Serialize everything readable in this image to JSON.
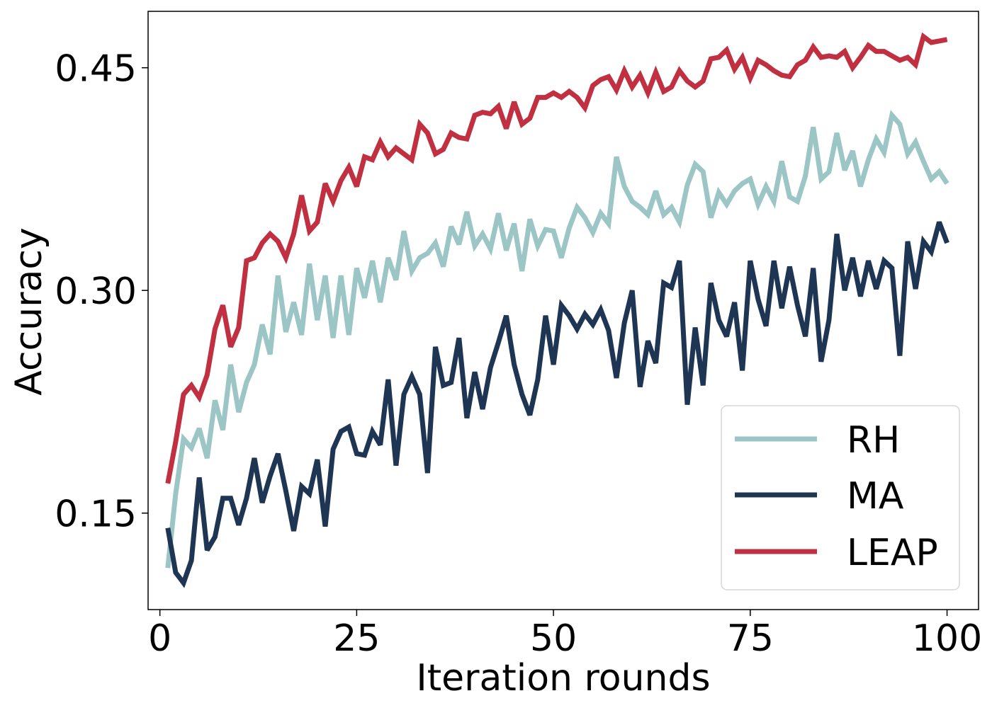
{
  "chart_data": {
    "type": "line",
    "title": "",
    "xlabel": "Iteration rounds",
    "ylabel": "Accuracy",
    "xlim": [
      -1.5,
      104
    ],
    "ylim": [
      0.085,
      0.488
    ],
    "xticks": [
      0,
      25,
      50,
      75,
      100
    ],
    "xtick_labels": [
      "0",
      "25",
      "50",
      "75",
      "100"
    ],
    "yticks": [
      0.15,
      0.3,
      0.45
    ],
    "ytick_labels": [
      "0.15",
      "0.30",
      "0.45"
    ],
    "grid": false,
    "legend_position": "bottom-right",
    "series": [
      {
        "name": "RH",
        "color": "#9cc5c6",
        "x": [
          1,
          2,
          3,
          4,
          5,
          6,
          7,
          8,
          9,
          10,
          11,
          12,
          13,
          14,
          15,
          16,
          17,
          18,
          19,
          20,
          21,
          22,
          23,
          24,
          25,
          26,
          27,
          28,
          29,
          30,
          31,
          32,
          33,
          34,
          35,
          36,
          37,
          38,
          39,
          40,
          41,
          42,
          43,
          44,
          45,
          46,
          47,
          48,
          49,
          50,
          51,
          52,
          53,
          54,
          55,
          56,
          57,
          58,
          59,
          60,
          61,
          62,
          63,
          64,
          65,
          66,
          67,
          68,
          69,
          70,
          71,
          72,
          73,
          74,
          75,
          76,
          77,
          78,
          79,
          80,
          81,
          82,
          83,
          84,
          85,
          86,
          87,
          88,
          89,
          90,
          91,
          92,
          93,
          94,
          95,
          96,
          97,
          98,
          99,
          100
        ],
        "values": [
          0.113,
          0.163,
          0.2,
          0.194,
          0.207,
          0.187,
          0.226,
          0.206,
          0.25,
          0.218,
          0.238,
          0.25,
          0.277,
          0.257,
          0.31,
          0.272,
          0.292,
          0.27,
          0.318,
          0.28,
          0.31,
          0.268,
          0.31,
          0.27,
          0.315,
          0.295,
          0.32,
          0.292,
          0.322,
          0.307,
          0.34,
          0.313,
          0.322,
          0.325,
          0.332,
          0.316,
          0.343,
          0.331,
          0.353,
          0.33,
          0.338,
          0.328,
          0.352,
          0.327,
          0.345,
          0.313,
          0.348,
          0.33,
          0.341,
          0.34,
          0.322,
          0.342,
          0.356,
          0.349,
          0.339,
          0.352,
          0.345,
          0.39,
          0.37,
          0.36,
          0.356,
          0.351,
          0.367,
          0.351,
          0.356,
          0.346,
          0.371,
          0.385,
          0.38,
          0.349,
          0.366,
          0.358,
          0.367,
          0.372,
          0.375,
          0.358,
          0.37,
          0.36,
          0.387,
          0.363,
          0.36,
          0.377,
          0.41,
          0.375,
          0.38,
          0.406,
          0.381,
          0.394,
          0.37,
          0.388,
          0.402,
          0.393,
          0.418,
          0.412,
          0.392,
          0.4,
          0.387,
          0.375,
          0.38,
          0.372
        ]
      },
      {
        "name": "MA",
        "color": "#1e3553",
        "x": [
          1,
          2,
          3,
          4,
          5,
          6,
          7,
          8,
          9,
          10,
          11,
          12,
          13,
          14,
          15,
          16,
          17,
          18,
          19,
          20,
          21,
          22,
          23,
          24,
          25,
          26,
          27,
          28,
          29,
          30,
          31,
          32,
          33,
          34,
          35,
          36,
          37,
          38,
          39,
          40,
          41,
          42,
          43,
          44,
          45,
          46,
          47,
          48,
          49,
          50,
          51,
          52,
          53,
          54,
          55,
          56,
          57,
          58,
          59,
          60,
          61,
          62,
          63,
          64,
          65,
          66,
          67,
          68,
          69,
          70,
          71,
          72,
          73,
          74,
          75,
          76,
          77,
          78,
          79,
          80,
          81,
          82,
          83,
          84,
          85,
          86,
          87,
          88,
          89,
          90,
          91,
          92,
          93,
          94,
          95,
          96,
          97,
          98,
          99,
          100
        ],
        "values": [
          0.14,
          0.11,
          0.103,
          0.118,
          0.174,
          0.125,
          0.134,
          0.16,
          0.16,
          0.142,
          0.16,
          0.187,
          0.157,
          0.175,
          0.19,
          0.165,
          0.138,
          0.168,
          0.163,
          0.186,
          0.141,
          0.193,
          0.205,
          0.208,
          0.19,
          0.189,
          0.205,
          0.196,
          0.24,
          0.182,
          0.23,
          0.242,
          0.23,
          0.177,
          0.262,
          0.236,
          0.238,
          0.268,
          0.214,
          0.245,
          0.22,
          0.248,
          0.265,
          0.283,
          0.25,
          0.23,
          0.216,
          0.24,
          0.283,
          0.25,
          0.29,
          0.283,
          0.274,
          0.284,
          0.277,
          0.287,
          0.273,
          0.241,
          0.278,
          0.3,
          0.235,
          0.266,
          0.251,
          0.305,
          0.302,
          0.32,
          0.223,
          0.275,
          0.236,
          0.305,
          0.28,
          0.269,
          0.292,
          0.246,
          0.32,
          0.294,
          0.276,
          0.32,
          0.288,
          0.316,
          0.29,
          0.269,
          0.315,
          0.252,
          0.28,
          0.338,
          0.3,
          0.322,
          0.296,
          0.32,
          0.301,
          0.32,
          0.315,
          0.256,
          0.333,
          0.301,
          0.333,
          0.326,
          0.346,
          0.332
        ]
      },
      {
        "name": "LEAP",
        "color": "#c03040",
        "x": [
          1,
          2,
          3,
          4,
          5,
          6,
          7,
          8,
          9,
          10,
          11,
          12,
          13,
          14,
          15,
          16,
          17,
          18,
          19,
          20,
          21,
          22,
          23,
          24,
          25,
          26,
          27,
          28,
          29,
          30,
          31,
          32,
          33,
          34,
          35,
          36,
          37,
          38,
          39,
          40,
          41,
          42,
          43,
          44,
          45,
          46,
          47,
          48,
          49,
          50,
          51,
          52,
          53,
          54,
          55,
          56,
          57,
          58,
          59,
          60,
          61,
          62,
          63,
          64,
          65,
          66,
          67,
          68,
          69,
          70,
          71,
          72,
          73,
          74,
          75,
          76,
          77,
          78,
          79,
          80,
          81,
          82,
          83,
          84,
          85,
          86,
          87,
          88,
          89,
          90,
          91,
          92,
          93,
          94,
          95,
          96,
          97,
          98,
          99,
          100
        ],
        "values": [
          0.17,
          0.198,
          0.23,
          0.236,
          0.228,
          0.243,
          0.274,
          0.29,
          0.262,
          0.275,
          0.32,
          0.322,
          0.332,
          0.338,
          0.333,
          0.322,
          0.338,
          0.364,
          0.34,
          0.346,
          0.372,
          0.36,
          0.374,
          0.383,
          0.37,
          0.39,
          0.388,
          0.4,
          0.39,
          0.396,
          0.392,
          0.388,
          0.412,
          0.406,
          0.392,
          0.395,
          0.406,
          0.403,
          0.402,
          0.418,
          0.42,
          0.419,
          0.424,
          0.409,
          0.427,
          0.412,
          0.416,
          0.43,
          0.43,
          0.433,
          0.43,
          0.434,
          0.43,
          0.423,
          0.438,
          0.442,
          0.444,
          0.435,
          0.448,
          0.437,
          0.445,
          0.433,
          0.447,
          0.434,
          0.437,
          0.448,
          0.441,
          0.437,
          0.441,
          0.456,
          0.457,
          0.462,
          0.449,
          0.457,
          0.443,
          0.455,
          0.452,
          0.448,
          0.445,
          0.444,
          0.452,
          0.455,
          0.464,
          0.457,
          0.458,
          0.457,
          0.461,
          0.45,
          0.457,
          0.465,
          0.461,
          0.461,
          0.458,
          0.455,
          0.457,
          0.452,
          0.471,
          0.467,
          0.468,
          0.469
        ]
      }
    ]
  }
}
